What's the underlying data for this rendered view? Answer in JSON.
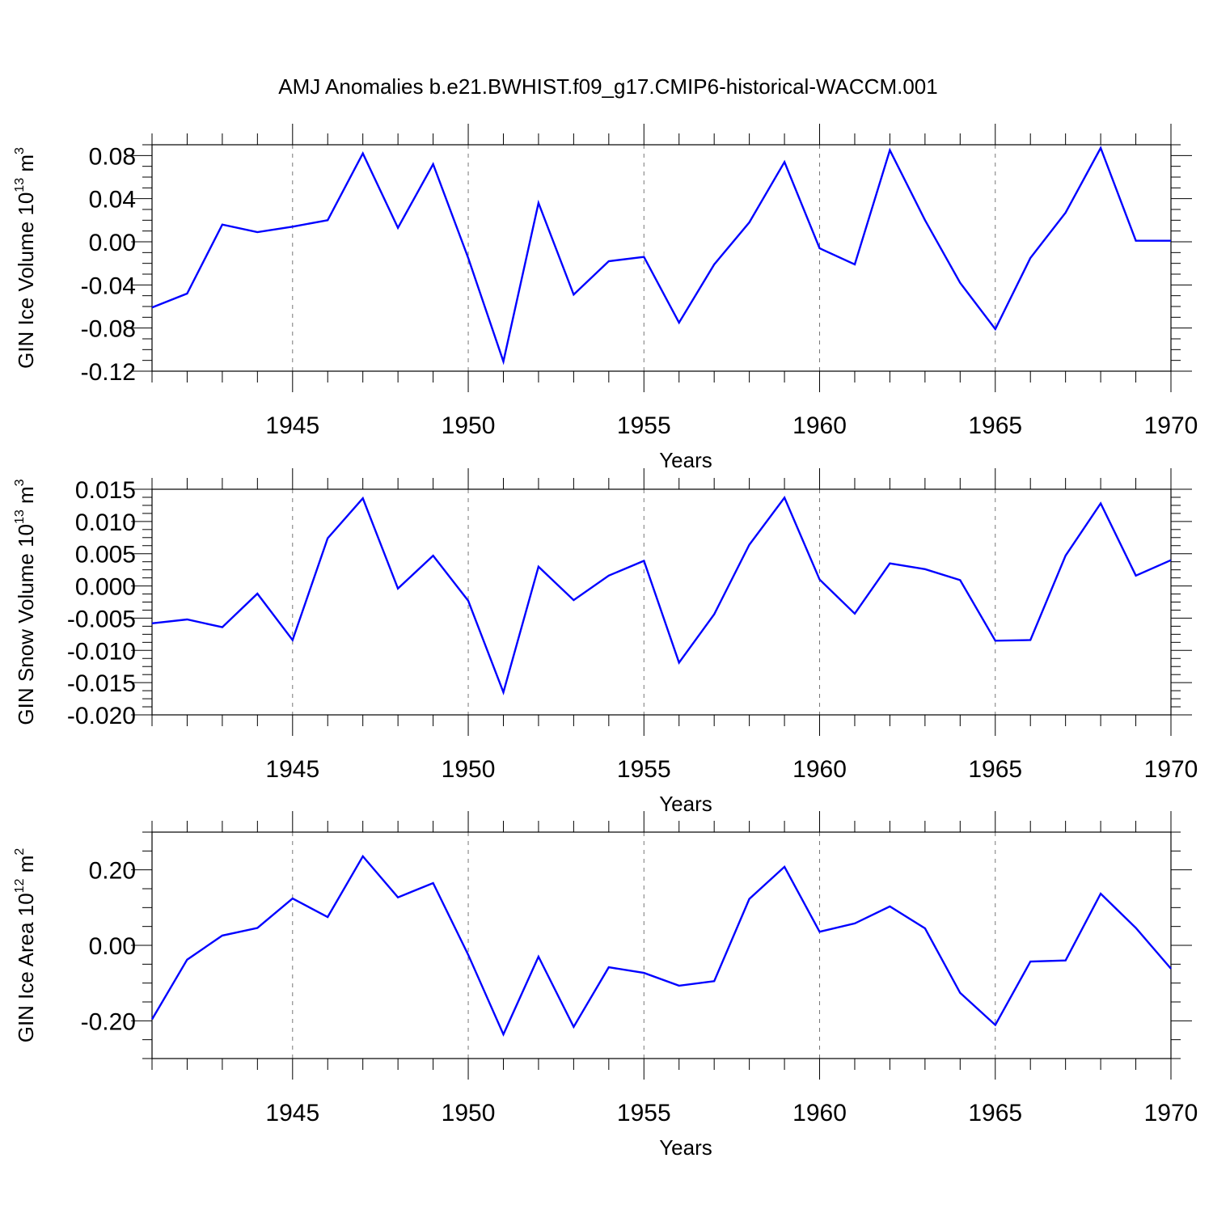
{
  "title": "AMJ Anomalies b.e21.BWHIST.f09_g17.CMIP6-historical-WACCM.001",
  "colors": {
    "line": "#0000ff",
    "grid": "#777777",
    "axis": "#000000"
  },
  "chart_data": [
    {
      "type": "line",
      "ylabel": {
        "main": "GIN Ice Volume 10",
        "exp": "13",
        "unit": " m",
        "unit_exp": "3"
      },
      "xlabel": "Years",
      "xlim": [
        1941,
        1970
      ],
      "ylim": [
        -0.12,
        0.09
      ],
      "yticks": [
        "0.08",
        "0.04",
        "0.00",
        "-0.04",
        "-0.08",
        "-0.12"
      ],
      "ytick_values": [
        0.08,
        0.04,
        0.0,
        -0.04,
        -0.08,
        -0.12
      ],
      "xticks": [
        "1945",
        "1950",
        "1955",
        "1960",
        "1965",
        "1970"
      ],
      "xtick_values": [
        1945,
        1950,
        1955,
        1960,
        1965,
        1970
      ],
      "grid": "vertical dashed at major x ticks",
      "x": [
        1941,
        1942,
        1943,
        1944,
        1945,
        1946,
        1947,
        1948,
        1949,
        1950,
        1951,
        1952,
        1953,
        1954,
        1955,
        1956,
        1957,
        1958,
        1959,
        1960,
        1961,
        1962,
        1963,
        1964,
        1965,
        1966,
        1967,
        1968,
        1969,
        1970
      ],
      "series": [
        {
          "values": [
            -0.061,
            -0.048,
            0.016,
            0.009,
            0.014,
            0.02,
            0.082,
            0.013,
            0.072,
            -0.015,
            -0.111,
            0.036,
            -0.049,
            -0.018,
            -0.014,
            -0.075,
            -0.021,
            0.018,
            0.074,
            -0.006,
            -0.021,
            0.085,
            0.02,
            -0.038,
            -0.081,
            -0.015,
            0.027,
            0.087,
            0.001,
            0.001
          ]
        }
      ]
    },
    {
      "type": "line",
      "ylabel": {
        "main": "GIN Snow Volume 10",
        "exp": "13",
        "unit": " m",
        "unit_exp": "3"
      },
      "xlabel": "Years",
      "xlim": [
        1941,
        1970
      ],
      "ylim": [
        -0.02,
        0.015
      ],
      "yticks": [
        "0.015",
        "0.010",
        "0.005",
        "0.000",
        "-0.005",
        "-0.010",
        "-0.015",
        "-0.020"
      ],
      "ytick_values": [
        0.015,
        0.01,
        0.005,
        0.0,
        -0.005,
        -0.01,
        -0.015,
        -0.02
      ],
      "xticks": [
        "1945",
        "1950",
        "1955",
        "1960",
        "1965",
        "1970"
      ],
      "xtick_values": [
        1945,
        1950,
        1955,
        1960,
        1965,
        1970
      ],
      "grid": "vertical dashed at major x ticks",
      "x": [
        1941,
        1942,
        1943,
        1944,
        1945,
        1946,
        1947,
        1948,
        1949,
        1950,
        1951,
        1952,
        1953,
        1954,
        1955,
        1956,
        1957,
        1958,
        1959,
        1960,
        1961,
        1962,
        1963,
        1964,
        1965,
        1966,
        1967,
        1968,
        1969,
        1970
      ],
      "series": [
        {
          "values": [
            -0.0058,
            -0.0052,
            -0.0064,
            -0.0012,
            -0.0084,
            0.0074,
            0.0136,
            -0.0004,
            0.0047,
            -0.0023,
            -0.0165,
            0.003,
            -0.0022,
            0.0016,
            0.0039,
            -0.0119,
            -0.0044,
            0.0064,
            0.0137,
            0.001,
            -0.0043,
            0.0035,
            0.0026,
            0.0009,
            -0.0085,
            -0.0084,
            0.0047,
            0.0128,
            0.0016,
            0.004
          ]
        }
      ]
    },
    {
      "type": "line",
      "ylabel": {
        "main": "GIN Ice Area 10",
        "exp": "12",
        "unit": " m",
        "unit_exp": "2"
      },
      "xlabel": "Years",
      "xlim": [
        1941,
        1970
      ],
      "ylim": [
        -0.3,
        0.3
      ],
      "yticks": [
        "0.20",
        "0.00",
        "-0.20"
      ],
      "ytick_values": [
        0.2,
        0.0,
        -0.2
      ],
      "xticks": [
        "1945",
        "1950",
        "1955",
        "1960",
        "1965",
        "1970"
      ],
      "xtick_values": [
        1945,
        1950,
        1955,
        1960,
        1965,
        1970
      ],
      "grid": "vertical dashed at major x ticks",
      "x": [
        1941,
        1942,
        1943,
        1944,
        1945,
        1946,
        1947,
        1948,
        1949,
        1950,
        1951,
        1952,
        1953,
        1954,
        1955,
        1956,
        1957,
        1958,
        1959,
        1960,
        1961,
        1962,
        1963,
        1964,
        1965,
        1966,
        1967,
        1968,
        1969,
        1970
      ],
      "series": [
        {
          "values": [
            -0.196,
            -0.038,
            0.026,
            0.046,
            0.124,
            0.075,
            0.236,
            0.127,
            0.165,
            -0.025,
            -0.236,
            -0.03,
            -0.216,
            -0.058,
            -0.073,
            -0.107,
            -0.095,
            0.123,
            0.208,
            0.036,
            0.058,
            0.103,
            0.045,
            -0.126,
            -0.211,
            -0.043,
            -0.04,
            0.137,
            0.046,
            -0.062
          ]
        }
      ]
    }
  ]
}
